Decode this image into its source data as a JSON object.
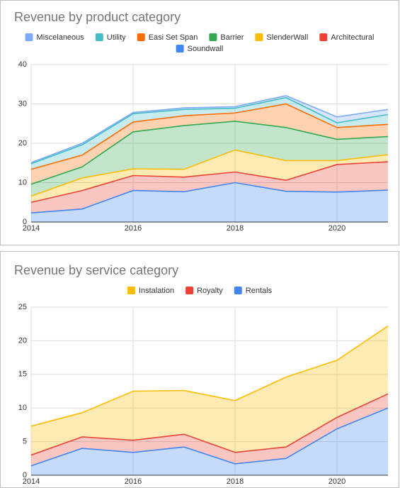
{
  "chart_data": [
    {
      "type": "area",
      "stacked": true,
      "title": "Revenue by product category",
      "x": [
        2014,
        2015,
        2016,
        2017,
        2018,
        2019,
        2020,
        2021
      ],
      "xlim": [
        2014,
        2021
      ],
      "xticks": [
        2014,
        2016,
        2018,
        2020
      ],
      "ylim": [
        0,
        40
      ],
      "yticks": [
        0,
        10,
        20,
        30,
        40
      ],
      "grid": true,
      "legend": "top",
      "series": [
        {
          "name": "Miscelaneous",
          "color": "#7baaf7",
          "values": [
            0.3,
            0.4,
            0.3,
            0.4,
            0.4,
            0.5,
            1.5,
            1.3
          ]
        },
        {
          "name": "Utility",
          "color": "#46bdc6",
          "values": [
            1.4,
            2.6,
            2.1,
            1.6,
            1.2,
            1.6,
            1.2,
            2.5
          ]
        },
        {
          "name": "Easi Set Span",
          "color": "#ff6d01",
          "values": [
            3.8,
            3.0,
            2.5,
            2.5,
            2.1,
            6.0,
            3.0,
            3.1
          ]
        },
        {
          "name": "Barrier",
          "color": "#34a853",
          "values": [
            3.0,
            2.8,
            9.4,
            11.1,
            7.3,
            8.4,
            5.4,
            4.6
          ]
        },
        {
          "name": "SlenderWall",
          "color": "#fbbc04",
          "values": [
            1.6,
            3.2,
            1.7,
            2.0,
            5.6,
            5.0,
            1.0,
            1.8
          ]
        },
        {
          "name": "Architectural",
          "color": "#ea4335",
          "values": [
            2.7,
            4.7,
            3.8,
            3.7,
            2.7,
            2.8,
            7.0,
            7.2
          ]
        },
        {
          "name": "Soundwall",
          "color": "#4285f4",
          "values": [
            2.3,
            3.3,
            8.0,
            7.7,
            10.0,
            7.8,
            7.6,
            8.1
          ]
        }
      ]
    },
    {
      "type": "area",
      "stacked": true,
      "title": "Revenue by service category",
      "x": [
        2014,
        2015,
        2016,
        2017,
        2018,
        2019,
        2020,
        2021
      ],
      "xlim": [
        2014,
        2021
      ],
      "xticks": [
        2014,
        2016,
        2018,
        2020
      ],
      "ylim": [
        0,
        25
      ],
      "yticks": [
        0,
        5,
        10,
        15,
        20,
        25
      ],
      "grid": true,
      "legend": "top",
      "series": [
        {
          "name": "Instalation",
          "color": "#fbbc04",
          "values": [
            4.3,
            3.6,
            7.3,
            6.5,
            7.7,
            10.4,
            8.5,
            10.1
          ]
        },
        {
          "name": "Royalty",
          "color": "#ea4335",
          "values": [
            1.6,
            1.7,
            1.8,
            1.9,
            1.7,
            1.7,
            1.7,
            2.1
          ]
        },
        {
          "name": "Rentals",
          "color": "#4285f4",
          "values": [
            1.4,
            4.0,
            3.4,
            4.2,
            1.7,
            2.5,
            6.9,
            10.0
          ]
        }
      ]
    }
  ]
}
